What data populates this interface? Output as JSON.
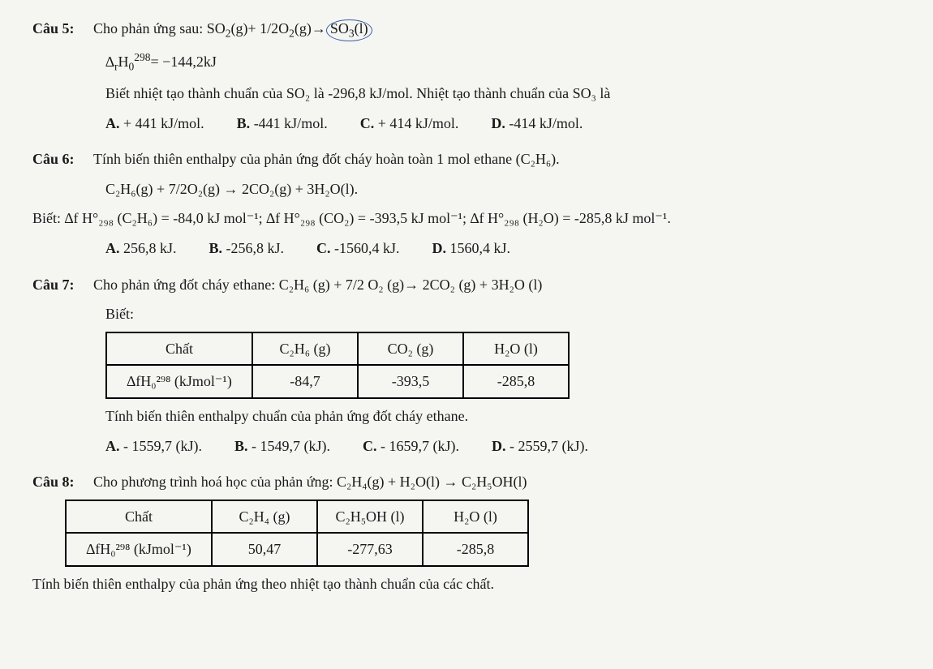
{
  "q5": {
    "label": "Câu 5:",
    "text1_pre": "Cho phản ứng sau: SO",
    "text1_post": "(g)+ 1/2O",
    "text1_mid": "(g)→",
    "text1_end": "(l)",
    "so3": "SO",
    "so3_sub": "3",
    "dh_line": "∆",
    "dh_sub": "r",
    "dh_h": "H",
    "dh_zero": "0",
    "dh_sup": "298",
    "dh_eq": "= −144,2kJ",
    "text2": "Biết nhiệt tạo thành chuẩn của SO₂ là -296,8 kJ/mol. Nhiệt tạo thành chuẩn của SO₃ là",
    "optA": "+ 441 kJ/mol.",
    "optB": "-441 kJ/mol.",
    "optC": "+ 414 kJ/mol.",
    "optD": "-414 kJ/mol."
  },
  "q6": {
    "label": "Câu 6:",
    "text1": "Tính biến thiên enthalpy của phản ứng đốt cháy hoàn toàn 1 mol ethane (C₂H₆).",
    "eq": "C₂H₆(g) + 7/2O₂(g) → 2CO₂(g) + 3H₂O(l).",
    "biet": "Biết: ∆f H°₂₉₈ (C₂H₆) = -84,0 kJ mol⁻¹; ∆f H°₂₉₈ (CO₂) = -393,5 kJ mol⁻¹; ∆f H°₂₉₈ (H₂O) = -285,8 kJ mol⁻¹.",
    "optA": "256,8 kJ.",
    "optB": "-256,8 kJ.",
    "optC": "-1560,4 kJ.",
    "optD": "1560,4 kJ."
  },
  "q7": {
    "label": "Câu 7:",
    "text1": "Cho phản ứng đốt cháy ethane: C₂H₆ (g) + 7/2 O₂ (g)→ 2CO₂ (g) + 3H₂O (l)",
    "biet": "Biết:",
    "th_chat": "Chất",
    "th_c2h6": "C₂H₆ (g)",
    "th_co2": "CO₂ (g)",
    "th_h2o": "H₂O (l)",
    "row_label": "∆fH₀²⁹⁸ (kJmol⁻¹)",
    "v1": "-84,7",
    "v2": "-393,5",
    "v3": "-285,8",
    "tinh": "Tính biến thiên enthalpy chuẩn của phản ứng đốt cháy ethane.",
    "optA": "- 1559,7 (kJ).",
    "optB": "- 1549,7 (kJ).",
    "optC": "- 1659,7 (kJ).",
    "optD": "- 2559,7 (kJ)."
  },
  "q8": {
    "label": "Câu 8:",
    "text1": "Cho phương trình hoá học của phản ứng: C₂H₄(g) + H₂O(l) → C₂H₅OH(l)",
    "th_chat": "Chất",
    "th_c2h4": "C₂H₄ (g)",
    "th_c2h5oh": "C₂H₅OH (l)",
    "th_h2o": "H₂O (l)",
    "row_label": "∆fH₀²⁹⁸ (kJmol⁻¹)",
    "v1": "50,47",
    "v2": "-277,63",
    "v3": "-285,8",
    "tinh": "Tính biến thiên enthalpy của phản ứng theo nhiệt tạo thành chuẩn của các chất."
  },
  "letters": {
    "A": "A.",
    "B": "B.",
    "C": "C.",
    "D": "D."
  }
}
